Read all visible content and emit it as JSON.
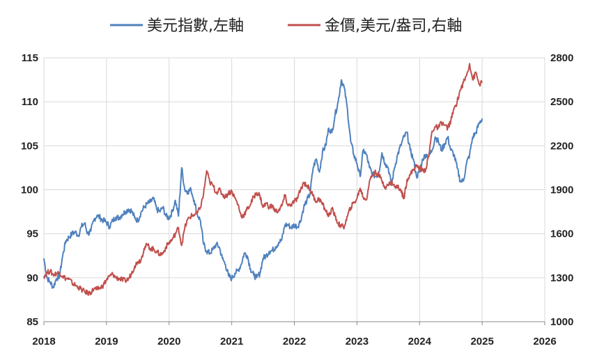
{
  "chart_data": {
    "type": "line",
    "title": "",
    "xlabel": "",
    "ylabel_left": "",
    "ylabel_right": "",
    "legend_position": "top",
    "grid": true,
    "x_ticks": [
      "2018",
      "2019",
      "2020",
      "2021",
      "2022",
      "2023",
      "2024",
      "2025",
      "2026"
    ],
    "xlim": [
      2018,
      2026
    ],
    "y_left": {
      "ticks": [
        "85",
        "90",
        "95",
        "100",
        "105",
        "110",
        "115"
      ],
      "lim": [
        85,
        115
      ]
    },
    "y_right": {
      "ticks": [
        "1000",
        "1300",
        "1600",
        "1900",
        "2200",
        "2500",
        "2800"
      ],
      "lim": [
        1000,
        2800
      ]
    },
    "series": [
      {
        "name": "美元指數,左軸",
        "axis": "left",
        "color": "#4f81bd",
        "points": [
          [
            2018.0,
            92.2
          ],
          [
            2018.05,
            90.0
          ],
          [
            2018.1,
            89.5
          ],
          [
            2018.15,
            88.9
          ],
          [
            2018.2,
            89.9
          ],
          [
            2018.25,
            90.2
          ],
          [
            2018.3,
            92.5
          ],
          [
            2018.35,
            94.2
          ],
          [
            2018.4,
            94.6
          ],
          [
            2018.45,
            95.0
          ],
          [
            2018.5,
            95.2
          ],
          [
            2018.55,
            94.8
          ],
          [
            2018.6,
            95.8
          ],
          [
            2018.65,
            96.2
          ],
          [
            2018.7,
            95.0
          ],
          [
            2018.75,
            95.3
          ],
          [
            2018.8,
            96.6
          ],
          [
            2018.85,
            97.1
          ],
          [
            2018.9,
            96.8
          ],
          [
            2018.95,
            96.5
          ],
          [
            2019.0,
            96.3
          ],
          [
            2019.05,
            95.8
          ],
          [
            2019.1,
            96.5
          ],
          [
            2019.15,
            96.9
          ],
          [
            2019.2,
            96.8
          ],
          [
            2019.25,
            97.2
          ],
          [
            2019.3,
            97.5
          ],
          [
            2019.35,
            97.8
          ],
          [
            2019.4,
            97.6
          ],
          [
            2019.45,
            96.8
          ],
          [
            2019.5,
            96.5
          ],
          [
            2019.55,
            97.4
          ],
          [
            2019.6,
            98.0
          ],
          [
            2019.65,
            98.4
          ],
          [
            2019.7,
            98.6
          ],
          [
            2019.75,
            99.0
          ],
          [
            2019.8,
            97.8
          ],
          [
            2019.85,
            97.5
          ],
          [
            2019.9,
            98.0
          ],
          [
            2019.95,
            97.0
          ],
          [
            2020.0,
            96.8
          ],
          [
            2020.05,
            97.5
          ],
          [
            2020.1,
            98.8
          ],
          [
            2020.15,
            97.0
          ],
          [
            2020.2,
            102.5
          ],
          [
            2020.25,
            100.0
          ],
          [
            2020.3,
            99.8
          ],
          [
            2020.35,
            100.0
          ],
          [
            2020.4,
            98.8
          ],
          [
            2020.45,
            97.2
          ],
          [
            2020.5,
            96.5
          ],
          [
            2020.55,
            93.8
          ],
          [
            2020.6,
            93.0
          ],
          [
            2020.65,
            92.8
          ],
          [
            2020.7,
            93.2
          ],
          [
            2020.75,
            93.8
          ],
          [
            2020.8,
            93.5
          ],
          [
            2020.85,
            92.2
          ],
          [
            2020.9,
            91.5
          ],
          [
            2020.95,
            90.2
          ],
          [
            2021.0,
            89.9
          ],
          [
            2021.05,
            90.5
          ],
          [
            2021.1,
            90.8
          ],
          [
            2021.15,
            91.5
          ],
          [
            2021.2,
            92.8
          ],
          [
            2021.25,
            92.5
          ],
          [
            2021.3,
            91.0
          ],
          [
            2021.35,
            90.3
          ],
          [
            2021.4,
            90.0
          ],
          [
            2021.45,
            90.5
          ],
          [
            2021.5,
            92.2
          ],
          [
            2021.55,
            92.5
          ],
          [
            2021.6,
            93.0
          ],
          [
            2021.65,
            93.1
          ],
          [
            2021.7,
            93.5
          ],
          [
            2021.75,
            94.0
          ],
          [
            2021.8,
            94.3
          ],
          [
            2021.85,
            96.0
          ],
          [
            2021.9,
            96.0
          ],
          [
            2021.95,
            95.7
          ],
          [
            2022.0,
            96.0
          ],
          [
            2022.05,
            95.8
          ],
          [
            2022.1,
            96.5
          ],
          [
            2022.15,
            98.0
          ],
          [
            2022.2,
            98.8
          ],
          [
            2022.25,
            99.5
          ],
          [
            2022.3,
            102.5
          ],
          [
            2022.35,
            103.5
          ],
          [
            2022.4,
            102.0
          ],
          [
            2022.45,
            104.3
          ],
          [
            2022.5,
            105.0
          ],
          [
            2022.55,
            107.0
          ],
          [
            2022.6,
            106.5
          ],
          [
            2022.65,
            108.5
          ],
          [
            2022.7,
            110.0
          ],
          [
            2022.75,
            112.5
          ],
          [
            2022.8,
            111.5
          ],
          [
            2022.85,
            109.0
          ],
          [
            2022.9,
            105.5
          ],
          [
            2022.95,
            104.0
          ],
          [
            2023.0,
            103.0
          ],
          [
            2023.05,
            101.5
          ],
          [
            2023.1,
            104.5
          ],
          [
            2023.15,
            104.0
          ],
          [
            2023.2,
            102.5
          ],
          [
            2023.25,
            101.8
          ],
          [
            2023.3,
            101.5
          ],
          [
            2023.35,
            102.0
          ],
          [
            2023.4,
            104.2
          ],
          [
            2023.45,
            103.0
          ],
          [
            2023.5,
            102.5
          ],
          [
            2023.55,
            100.5
          ],
          [
            2023.6,
            102.5
          ],
          [
            2023.65,
            104.0
          ],
          [
            2023.7,
            105.0
          ],
          [
            2023.75,
            106.0
          ],
          [
            2023.8,
            106.5
          ],
          [
            2023.85,
            104.5
          ],
          [
            2023.9,
            103.5
          ],
          [
            2023.95,
            101.5
          ],
          [
            2024.0,
            102.0
          ],
          [
            2024.05,
            103.5
          ],
          [
            2024.1,
            104.0
          ],
          [
            2024.15,
            103.8
          ],
          [
            2024.2,
            104.5
          ],
          [
            2024.25,
            106.0
          ],
          [
            2024.3,
            105.5
          ],
          [
            2024.35,
            104.5
          ],
          [
            2024.4,
            105.2
          ],
          [
            2024.45,
            106.0
          ],
          [
            2024.5,
            104.5
          ],
          [
            2024.55,
            104.0
          ],
          [
            2024.6,
            102.5
          ],
          [
            2024.65,
            101.0
          ],
          [
            2024.7,
            101.0
          ],
          [
            2024.75,
            103.0
          ],
          [
            2024.8,
            104.0
          ],
          [
            2024.85,
            106.0
          ],
          [
            2024.9,
            106.5
          ],
          [
            2024.95,
            107.5
          ],
          [
            2025.0,
            108.1
          ]
        ]
      },
      {
        "name": "金價,美元/盎司,右軸",
        "axis": "right",
        "color": "#c0504d",
        "points": [
          [
            2018.0,
            1310
          ],
          [
            2018.05,
            1335
          ],
          [
            2018.1,
            1345
          ],
          [
            2018.15,
            1320
          ],
          [
            2018.2,
            1330
          ],
          [
            2018.25,
            1335
          ],
          [
            2018.3,
            1310
          ],
          [
            2018.35,
            1295
          ],
          [
            2018.4,
            1290
          ],
          [
            2018.45,
            1265
          ],
          [
            2018.5,
            1250
          ],
          [
            2018.55,
            1235
          ],
          [
            2018.6,
            1220
          ],
          [
            2018.65,
            1205
          ],
          [
            2018.7,
            1195
          ],
          [
            2018.75,
            1200
          ],
          [
            2018.8,
            1225
          ],
          [
            2018.85,
            1220
          ],
          [
            2018.9,
            1230
          ],
          [
            2018.95,
            1250
          ],
          [
            2019.0,
            1285
          ],
          [
            2019.05,
            1310
          ],
          [
            2019.1,
            1325
          ],
          [
            2019.15,
            1300
          ],
          [
            2019.2,
            1295
          ],
          [
            2019.25,
            1285
          ],
          [
            2019.3,
            1280
          ],
          [
            2019.35,
            1290
          ],
          [
            2019.4,
            1330
          ],
          [
            2019.45,
            1380
          ],
          [
            2019.5,
            1410
          ],
          [
            2019.55,
            1420
          ],
          [
            2019.6,
            1500
          ],
          [
            2019.65,
            1525
          ],
          [
            2019.7,
            1500
          ],
          [
            2019.75,
            1495
          ],
          [
            2019.8,
            1480
          ],
          [
            2019.85,
            1460
          ],
          [
            2019.9,
            1465
          ],
          [
            2019.95,
            1510
          ],
          [
            2020.0,
            1540
          ],
          [
            2020.05,
            1560
          ],
          [
            2020.1,
            1600
          ],
          [
            2020.15,
            1640
          ],
          [
            2020.2,
            1520
          ],
          [
            2020.25,
            1640
          ],
          [
            2020.3,
            1700
          ],
          [
            2020.35,
            1720
          ],
          [
            2020.4,
            1730
          ],
          [
            2020.45,
            1740
          ],
          [
            2020.5,
            1780
          ],
          [
            2020.55,
            1870
          ],
          [
            2020.6,
            2030
          ],
          [
            2020.65,
            1950
          ],
          [
            2020.7,
            1930
          ],
          [
            2020.75,
            1880
          ],
          [
            2020.8,
            1900
          ],
          [
            2020.85,
            1870
          ],
          [
            2020.9,
            1850
          ],
          [
            2020.95,
            1880
          ],
          [
            2021.0,
            1890
          ],
          [
            2021.05,
            1845
          ],
          [
            2021.1,
            1800
          ],
          [
            2021.15,
            1720
          ],
          [
            2021.2,
            1730
          ],
          [
            2021.25,
            1770
          ],
          [
            2021.3,
            1800
          ],
          [
            2021.35,
            1850
          ],
          [
            2021.4,
            1880
          ],
          [
            2021.45,
            1860
          ],
          [
            2021.5,
            1780
          ],
          [
            2021.55,
            1810
          ],
          [
            2021.6,
            1780
          ],
          [
            2021.65,
            1790
          ],
          [
            2021.7,
            1750
          ],
          [
            2021.75,
            1760
          ],
          [
            2021.8,
            1790
          ],
          [
            2021.85,
            1860
          ],
          [
            2021.9,
            1790
          ],
          [
            2021.95,
            1800
          ],
          [
            2022.0,
            1820
          ],
          [
            2022.05,
            1840
          ],
          [
            2022.1,
            1900
          ],
          [
            2022.15,
            1950
          ],
          [
            2022.2,
            1930
          ],
          [
            2022.25,
            1900
          ],
          [
            2022.3,
            1860
          ],
          [
            2022.35,
            1820
          ],
          [
            2022.4,
            1840
          ],
          [
            2022.45,
            1800
          ],
          [
            2022.5,
            1760
          ],
          [
            2022.55,
            1720
          ],
          [
            2022.6,
            1770
          ],
          [
            2022.65,
            1720
          ],
          [
            2022.7,
            1670
          ],
          [
            2022.75,
            1650
          ],
          [
            2022.8,
            1650
          ],
          [
            2022.85,
            1720
          ],
          [
            2022.9,
            1780
          ],
          [
            2022.95,
            1810
          ],
          [
            2023.0,
            1840
          ],
          [
            2023.05,
            1910
          ],
          [
            2023.1,
            1850
          ],
          [
            2023.15,
            1830
          ],
          [
            2023.2,
            1960
          ],
          [
            2023.25,
            2000
          ],
          [
            2023.3,
            2020
          ],
          [
            2023.35,
            2000
          ],
          [
            2023.4,
            1960
          ],
          [
            2023.45,
            1920
          ],
          [
            2023.5,
            1930
          ],
          [
            2023.55,
            1960
          ],
          [
            2023.6,
            1920
          ],
          [
            2023.65,
            1920
          ],
          [
            2023.7,
            1900
          ],
          [
            2023.75,
            1840
          ],
          [
            2023.8,
            1970
          ],
          [
            2023.85,
            2000
          ],
          [
            2023.9,
            2040
          ],
          [
            2023.95,
            2060
          ],
          [
            2024.0,
            2050
          ],
          [
            2024.05,
            2030
          ],
          [
            2024.1,
            2040
          ],
          [
            2024.15,
            2140
          ],
          [
            2024.2,
            2300
          ],
          [
            2024.25,
            2330
          ],
          [
            2024.3,
            2320
          ],
          [
            2024.35,
            2360
          ],
          [
            2024.4,
            2340
          ],
          [
            2024.45,
            2320
          ],
          [
            2024.5,
            2370
          ],
          [
            2024.55,
            2450
          ],
          [
            2024.6,
            2500
          ],
          [
            2024.65,
            2580
          ],
          [
            2024.7,
            2630
          ],
          [
            2024.75,
            2680
          ],
          [
            2024.8,
            2760
          ],
          [
            2024.85,
            2650
          ],
          [
            2024.9,
            2700
          ],
          [
            2024.95,
            2620
          ],
          [
            2025.0,
            2630
          ]
        ]
      }
    ]
  }
}
